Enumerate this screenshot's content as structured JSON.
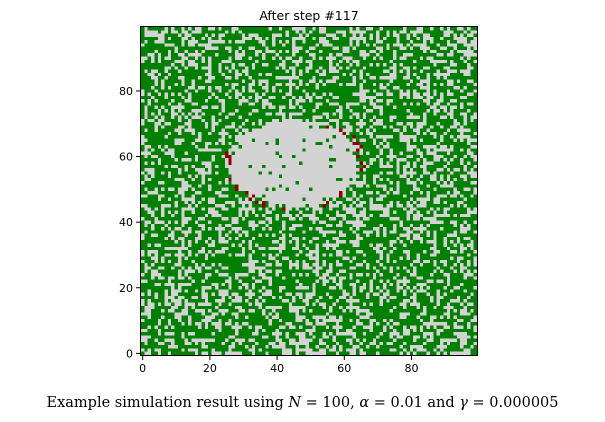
{
  "chart_data": {
    "type": "heatmap",
    "title": "After step #117",
    "xlabel": "",
    "ylabel": "",
    "grid_size": 100,
    "xlim": [
      0,
      99
    ],
    "ylim": [
      0,
      99
    ],
    "x_ticks": [
      0,
      20,
      40,
      60,
      80
    ],
    "y_ticks": [
      0,
      20,
      40,
      60,
      80
    ],
    "legend": "none",
    "cell_states": {
      "tree": "#008000",
      "empty": "#d3d3d3",
      "burning": "#8b0000"
    },
    "tree_density_approx": 0.62,
    "burned_region": {
      "description": "cleared patch of empty cells",
      "x_range": [
        25,
        65
      ],
      "y_range": [
        44,
        72
      ]
    },
    "fire_front": "burning cells along the lower-left and right edges of the cleared patch"
  },
  "caption": {
    "prefix": "Example simulation result using ",
    "n_symbol": "N",
    "n_value": " = 100, ",
    "alpha_symbol": "α",
    "alpha_value": " = 0.01 and ",
    "gamma_symbol": "γ",
    "gamma_value": " = 0.000005"
  }
}
